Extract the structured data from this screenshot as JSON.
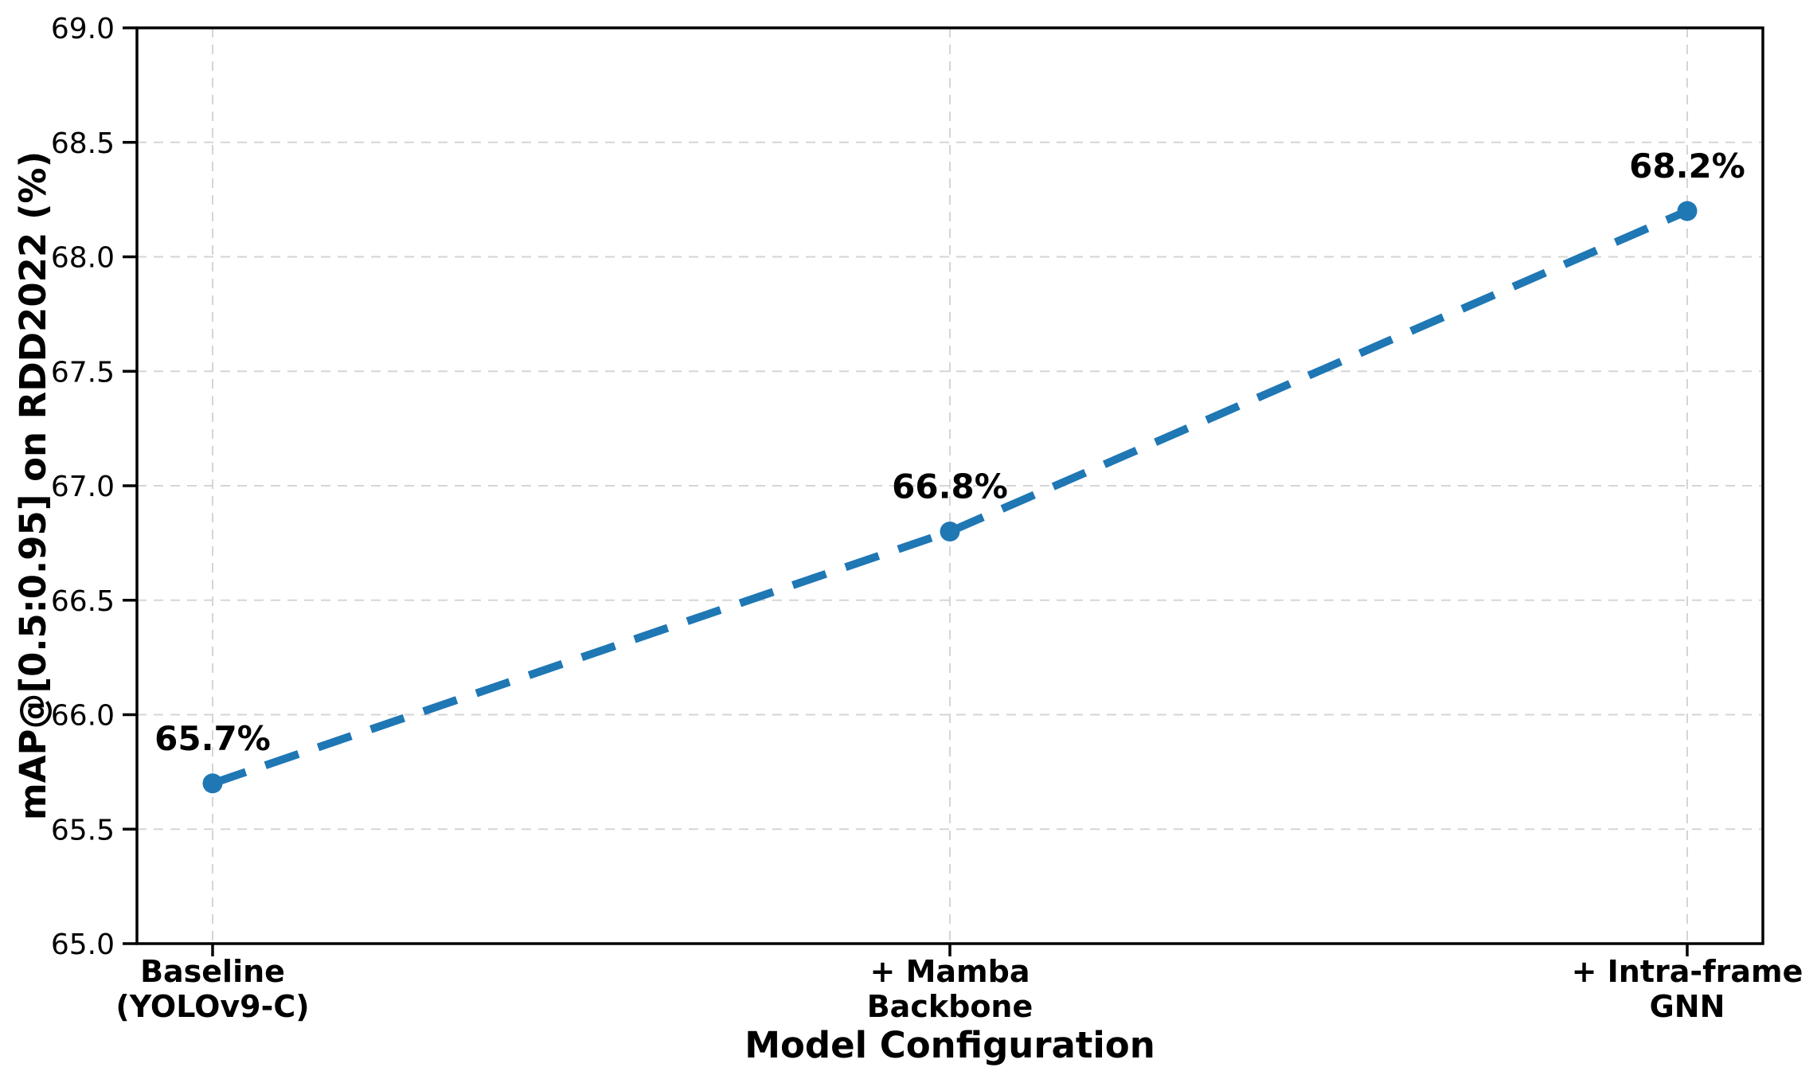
{
  "figure": {
    "background": "#ffffff"
  },
  "chart_data": {
    "type": "line",
    "title": "",
    "xlabel": "Model Configuration",
    "ylabel": "mAP@[0.5:0.95] on RDD2022 (%)",
    "categories": [
      [
        "Baseline",
        "(YOLOv9-C)"
      ],
      [
        "+ Mamba",
        "Backbone"
      ],
      [
        "+ Intra-frame",
        "GNN"
      ]
    ],
    "values": [
      65.7,
      66.8,
      68.2
    ],
    "point_labels": [
      "65.7%",
      "66.8%",
      "68.2%"
    ],
    "ylim": [
      65.0,
      69.0
    ],
    "ytick_step": 0.5,
    "ytick_labels": [
      "65.0",
      "65.5",
      "66.0",
      "66.5",
      "67.0",
      "67.5",
      "68.0",
      "68.5",
      "69.0"
    ],
    "grid": true,
    "grid_style": "dashed",
    "legend_position": "none",
    "line_color": "#1f77b4",
    "grid_color": "#d5d5d5",
    "axis_color": "#000000",
    "label_color": "#000000",
    "line_style": "dashed",
    "marker": "circle"
  }
}
